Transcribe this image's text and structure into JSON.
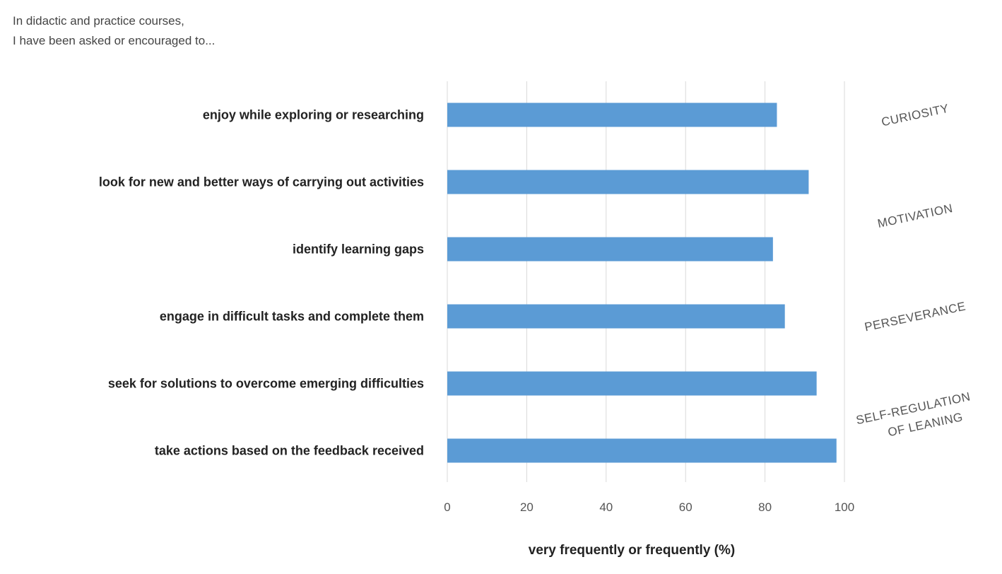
{
  "intro": {
    "line1": "In didactic and practice courses,",
    "line2": "I have been asked or encouraged to..."
  },
  "chart_data": {
    "type": "bar",
    "orientation": "horizontal",
    "categories": [
      "enjoy while exploring or researching",
      "look for new and better ways of carrying out activities",
      "identify learning gaps",
      "engage in difficult tasks and complete them",
      "seek for solutions to overcome emerging difficulties",
      "take actions based on the feedback received"
    ],
    "values": [
      83,
      91,
      82,
      85,
      93,
      98
    ],
    "xlabel": "very frequently or frequently (%)",
    "ylabel": "",
    "xlim": [
      0,
      100
    ],
    "xticks": [
      "0",
      "20",
      "40",
      "60",
      "80",
      "100"
    ],
    "grid": "vertical",
    "color": "#5b9bd5",
    "groups": [
      {
        "lines": [
          "CURIOSITY"
        ],
        "rows": [
          0
        ]
      },
      {
        "lines": [
          "MOTIVATION"
        ],
        "rows": [
          1,
          2
        ]
      },
      {
        "lines": [
          "PERSEVERANCE"
        ],
        "rows": [
          3
        ]
      },
      {
        "lines": [
          "SELF-REGULATION",
          "OF LEANING"
        ],
        "rows": [
          4,
          5
        ]
      }
    ]
  }
}
